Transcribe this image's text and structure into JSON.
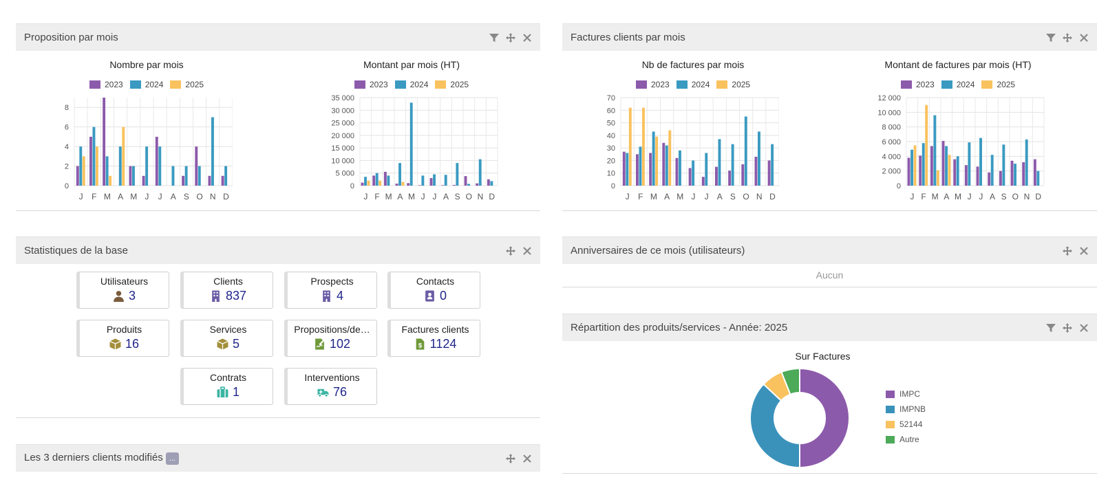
{
  "colors": {
    "y2023": "#8c5aab",
    "y2024": "#3a9ac1",
    "y2025": "#f9c25e",
    "green": "#4caa58"
  },
  "widgets": {
    "propositions": {
      "title": "Proposition par mois",
      "count_chart": {
        "type": "bar",
        "title": "Nombre par mois",
        "categories": [
          "J",
          "F",
          "M",
          "A",
          "M",
          "J",
          "J",
          "A",
          "S",
          "O",
          "N",
          "D"
        ],
        "yticks": [
          "0",
          "2",
          "4",
          "6",
          "8"
        ],
        "ylim": [
          0,
          9
        ],
        "series": [
          {
            "name": "2023",
            "values": [
              2,
              5,
              9,
              0,
              2,
              1,
              5,
              0,
              1,
              4,
              1,
              1
            ]
          },
          {
            "name": "2024",
            "values": [
              4,
              6,
              3,
              4,
              2,
              4,
              4,
              2,
              2,
              2,
              7,
              2
            ]
          },
          {
            "name": "2025",
            "values": [
              3,
              4,
              1,
              6,
              0,
              0,
              0,
              0,
              0,
              0,
              0,
              0
            ]
          }
        ]
      },
      "amount_chart": {
        "type": "bar",
        "title": "Montant par mois (HT)",
        "categories": [
          "J",
          "F",
          "M",
          "A",
          "M",
          "J",
          "J",
          "A",
          "S",
          "O",
          "N",
          "D"
        ],
        "yticks": [
          "0",
          "5 000",
          "10 000",
          "15 000",
          "20 000",
          "25 000",
          "30 000",
          "35 000"
        ],
        "ylim": [
          0,
          35000
        ],
        "series": [
          {
            "name": "2023",
            "values": [
              1200,
              4000,
              5500,
              800,
              1000,
              200,
              3000,
              200,
              300,
              3800,
              900,
              2500
            ]
          },
          {
            "name": "2024",
            "values": [
              3500,
              5000,
              4000,
              9000,
              33000,
              4000,
              4500,
              4300,
              9000,
              700,
              10500,
              1800
            ]
          },
          {
            "name": "2025",
            "values": [
              2000,
              2000,
              0,
              1500,
              0,
              0,
              0,
              0,
              0,
              0,
              0,
              0
            ]
          }
        ]
      }
    },
    "invoices": {
      "title": "Factures clients par mois",
      "count_chart": {
        "type": "bar",
        "title": "Nb de factures par mois",
        "categories": [
          "J",
          "F",
          "M",
          "A",
          "M",
          "J",
          "J",
          "A",
          "S",
          "O",
          "N",
          "D"
        ],
        "yticks": [
          "0",
          "10",
          "20",
          "30",
          "40",
          "50",
          "60",
          "70"
        ],
        "ylim": [
          0,
          70
        ],
        "series": [
          {
            "name": "2023",
            "values": [
              27,
              25,
              26,
              34,
              22,
              14,
              7,
              15,
              12,
              17,
              23,
              20
            ]
          },
          {
            "name": "2024",
            "values": [
              26,
              31,
              43,
              32,
              28,
              20,
              26,
              37,
              33,
              55,
              43,
              33
            ]
          },
          {
            "name": "2025",
            "values": [
              62,
              62,
              39,
              44,
              0,
              0,
              0,
              0,
              0,
              0,
              0,
              0
            ]
          }
        ]
      },
      "amount_chart": {
        "type": "bar",
        "title": "Montant de factures par mois (HT)",
        "categories": [
          "J",
          "F",
          "M",
          "A",
          "M",
          "J",
          "J",
          "A",
          "S",
          "O",
          "N",
          "D"
        ],
        "yticks": [
          "0",
          "2 000",
          "4 000",
          "6 000",
          "8 000",
          "10 000",
          "12 000"
        ],
        "ylim": [
          0,
          12000
        ],
        "series": [
          {
            "name": "2023",
            "values": [
              3800,
              4100,
              5400,
              6100,
              3600,
              2800,
              2600,
              1800,
              2000,
              3400,
              3200,
              3600
            ]
          },
          {
            "name": "2024",
            "values": [
              4900,
              5800,
              9600,
              5400,
              4000,
              5900,
              6500,
              4200,
              5600,
              3000,
              6300,
              2000
            ]
          },
          {
            "name": "2025",
            "values": [
              5500,
              11000,
              2100,
              4200,
              0,
              0,
              0,
              0,
              0,
              0,
              0,
              0
            ]
          }
        ]
      }
    },
    "stats": {
      "title": "Statistiques de la base",
      "cards": [
        {
          "label": "Utilisateurs",
          "value": "3",
          "icon": "user-icon",
          "color": "#7a5c3c"
        },
        {
          "label": "Clients",
          "value": "837",
          "icon": "building-icon",
          "color": "#6b5ca5"
        },
        {
          "label": "Prospects",
          "value": "4",
          "icon": "building-icon",
          "color": "#6b5ca5"
        },
        {
          "label": "Contacts",
          "value": "0",
          "icon": "address-book-icon",
          "color": "#6b5ca5"
        },
        {
          "label": "Produits",
          "value": "16",
          "icon": "cube-icon",
          "color": "#a38f3b"
        },
        {
          "label": "Services",
          "value": "5",
          "icon": "cube-icon",
          "color": "#a38f3b"
        },
        {
          "label": "Propositions/de…",
          "value": "102",
          "icon": "signature-icon",
          "color": "#6f9a3a"
        },
        {
          "label": "Factures clients",
          "value": "1124",
          "icon": "invoice-icon",
          "color": "#6f9a3a"
        },
        {
          "label": "Contrats",
          "value": "1",
          "icon": "suitcase-icon",
          "color": "#3ab5a3"
        },
        {
          "label": "Interventions",
          "value": "76",
          "icon": "ambulance-icon",
          "color": "#3ab5a3"
        }
      ]
    },
    "birthdays": {
      "title": "Anniversaires de ce mois (utilisateurs)",
      "empty": "Aucun"
    },
    "distribution": {
      "title": "Répartition des produits/services - Année: 2025",
      "chart_data": {
        "type": "pie",
        "title": "Sur Factures",
        "slices": [
          {
            "label": "IMPC",
            "value": 50,
            "color": "#8c5aab"
          },
          {
            "label": "IMPNB",
            "value": 37,
            "color": "#3a92bb"
          },
          {
            "label": "52144",
            "value": 7,
            "color": "#f9c25e"
          },
          {
            "label": "Autre",
            "value": 6,
            "color": "#4caa58"
          }
        ]
      }
    },
    "last_clients": {
      "title": "Les 3 derniers clients modifiés",
      "more": "..."
    }
  }
}
